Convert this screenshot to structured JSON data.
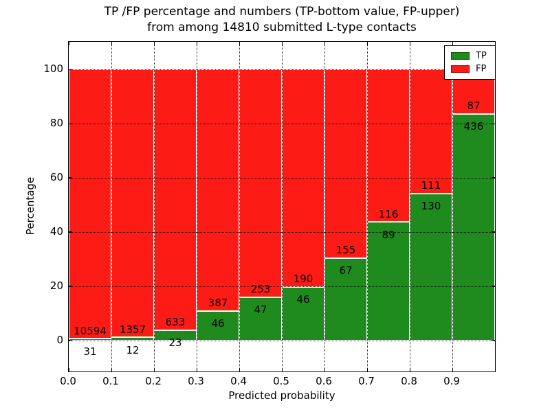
{
  "title": {
    "line1": "TP /FP percentage and numbers (TP-bottom value, FP-upper)",
    "line2": "from among 14810 submitted L-type contacts"
  },
  "axes": {
    "xlabel": "Predicted probability",
    "ylabel": "Percentage",
    "xtick_labels": [
      "0.0",
      "0.1",
      "0.2",
      "0.3",
      "0.4",
      "0.5",
      "0.6",
      "0.7",
      "0.8",
      "0.9"
    ],
    "ytick_labels": [
      "0",
      "20",
      "40",
      "60",
      "80",
      "100"
    ]
  },
  "legend": {
    "position": "upper right",
    "items": [
      {
        "label": "TP",
        "color": "#1f8b1f"
      },
      {
        "label": "FP",
        "color": "#fc1b15"
      }
    ]
  },
  "colors": {
    "tp_green": "#1f8b1f",
    "fp_red": "#fc1b15",
    "bar_edge": "#ffffff",
    "grid": "#000000",
    "background": "#ffffff"
  },
  "chart_data": {
    "type": "bar",
    "stacked": true,
    "normalized_to_percent": true,
    "title": "TP /FP percentage and numbers (TP-bottom value, FP-upper) from among 14810 submitted L-type contacts",
    "xlabel": "Predicted probability",
    "ylabel": "Percentage",
    "bin_edges": [
      0.0,
      0.1,
      0.2,
      0.3,
      0.4,
      0.5,
      0.6,
      0.7,
      0.8,
      0.9,
      1.0
    ],
    "categories": [
      "0.0-0.1",
      "0.1-0.2",
      "0.2-0.3",
      "0.3-0.4",
      "0.4-0.5",
      "0.5-0.6",
      "0.6-0.7",
      "0.7-0.8",
      "0.8-0.9",
      "0.9-1.0"
    ],
    "series": [
      {
        "name": "TP",
        "color": "#1f8b1f",
        "counts": [
          31,
          12,
          23,
          46,
          47,
          46,
          67,
          89,
          130,
          436
        ]
      },
      {
        "name": "FP",
        "color": "#fc1b15",
        "counts": [
          10594,
          1357,
          633,
          387,
          253,
          190,
          155,
          116,
          111,
          87
        ]
      }
    ],
    "tp_percent": [
      0.29,
      0.88,
      3.51,
      10.62,
      15.67,
      19.49,
      30.18,
      43.41,
      53.94,
      83.37
    ],
    "total_submitted": 14810,
    "xlim": [
      0.0,
      1.0
    ],
    "ylim": [
      -11.5,
      110.2
    ],
    "xticks": [
      0.0,
      0.1,
      0.2,
      0.3,
      0.4,
      0.5,
      0.6,
      0.7,
      0.8,
      0.9
    ],
    "yticks": [
      0,
      20,
      40,
      60,
      80,
      100
    ],
    "grid": "dotted both axes, drawn above bars",
    "legend_position": "upper right"
  }
}
